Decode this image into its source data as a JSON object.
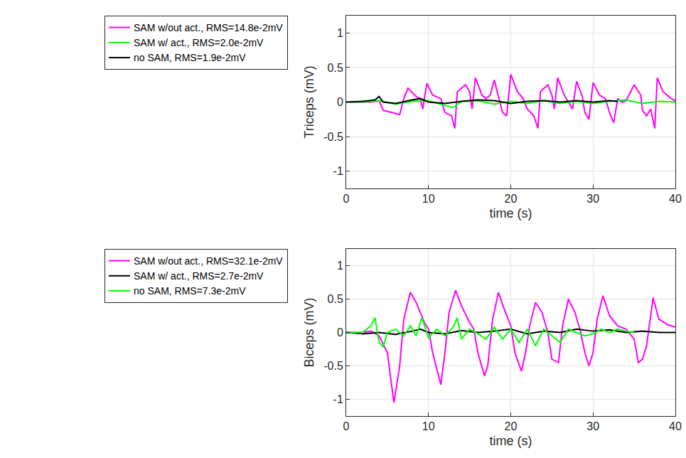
{
  "chart_data": [
    {
      "type": "line",
      "x_label": "time (s)",
      "y_label": "Triceps (mV)",
      "xlim": [
        0,
        40
      ],
      "xticks": [
        0,
        10,
        20,
        30,
        40
      ],
      "ylim": [
        -1.25,
        1.25
      ],
      "yticks": [
        -1,
        -0.5,
        0,
        0.5,
        1
      ],
      "grid": true,
      "legend": "left",
      "series": [
        {
          "name": "SAM w/out act., RMS=14.8e-2mV",
          "color": "#ff00ff",
          "x": [
            0,
            3,
            4,
            4.5,
            5.5,
            6.5,
            7,
            7.5,
            8.5,
            9,
            9.3,
            9.8,
            10.5,
            11.5,
            12,
            12.8,
            13.2,
            13.5,
            14.5,
            15,
            15.3,
            15.7,
            16.5,
            17,
            17.5,
            18,
            18.5,
            19,
            19.5,
            20,
            20.8,
            21.5,
            22,
            22.8,
            23.3,
            23.6,
            24.5,
            25,
            25.3,
            25.7,
            26.5,
            27,
            27.5,
            28,
            28.7,
            29,
            29.5,
            30,
            30.8,
            31.5,
            32,
            32.5,
            33,
            33.5,
            34,
            35,
            35.8,
            36,
            36.5,
            37,
            37.5,
            37.8,
            38.5,
            39.5,
            40
          ],
          "values": [
            0,
            0,
            0.02,
            -0.12,
            -0.15,
            -0.18,
            0.05,
            0.2,
            0.08,
            0.05,
            -0.1,
            0.27,
            0.1,
            0.05,
            -0.15,
            -0.2,
            -0.38,
            0.15,
            0.25,
            0.15,
            -0.1,
            0.35,
            0.1,
            0.05,
            0.1,
            0.32,
            0.08,
            -0.15,
            -0.2,
            0.4,
            0.15,
            0.05,
            -0.1,
            -0.2,
            -0.38,
            0.15,
            0.25,
            0.1,
            -0.1,
            0.35,
            0.1,
            0,
            -0.1,
            0.3,
            0.08,
            -0.15,
            -0.25,
            0.28,
            0.1,
            0.05,
            -0.15,
            -0.3,
            0.05,
            0,
            0.02,
            0.25,
            0.1,
            -0.12,
            -0.2,
            -0.1,
            -0.38,
            0.35,
            0.15,
            0.05,
            0.02
          ]
        },
        {
          "name": "SAM w/ act., RMS=2.0e-2mV",
          "color": "#00ff00",
          "x": [
            0,
            2,
            4,
            6,
            8,
            10,
            12,
            13,
            14,
            16,
            18,
            20,
            22,
            24,
            26,
            28,
            30,
            32,
            34,
            36,
            38,
            40
          ],
          "values": [
            0,
            0,
            0.02,
            -0.03,
            0.01,
            0.02,
            -0.05,
            -0.08,
            0.01,
            0.02,
            -0.03,
            0.01,
            -0.02,
            0.02,
            -0.02,
            0.01,
            -0.02,
            0.01,
            0.03,
            -0.02,
            0.01,
            0
          ]
        },
        {
          "name": "no SAM, RMS=1.9e-2mV",
          "color": "#000000",
          "x": [
            0,
            2,
            3.5,
            4,
            4.5,
            6,
            8,
            9,
            10,
            12,
            14,
            16,
            18,
            20,
            22,
            24,
            26,
            28,
            30,
            32,
            33
          ],
          "values": [
            0,
            0.01,
            0.03,
            0.08,
            0,
            -0.02,
            0.03,
            0.05,
            0,
            -0.02,
            0.01,
            0.03,
            0.02,
            -0.02,
            0.01,
            0.02,
            0,
            0.02,
            0,
            0.02,
            0.01
          ]
        }
      ]
    },
    {
      "type": "line",
      "x_label": "time (s)",
      "y_label": "Biceps (mV)",
      "xlim": [
        0,
        40
      ],
      "xticks": [
        0,
        10,
        20,
        30,
        40
      ],
      "ylim": [
        -1.25,
        1.25
      ],
      "yticks": [
        -1,
        -0.5,
        0,
        0.5,
        1
      ],
      "grid": true,
      "legend": "left",
      "series": [
        {
          "name": "SAM w/out act., RMS=32.1e-2mV",
          "color": "#ff00ff",
          "x": [
            0,
            2,
            3,
            4,
            5,
            5.8,
            6.5,
            7,
            7.8,
            8.5,
            9.5,
            10,
            10.5,
            11,
            11.5,
            12,
            12.5,
            13.3,
            14,
            15,
            15.5,
            16,
            16.8,
            17.2,
            17.8,
            18.5,
            19.2,
            20,
            20.5,
            21.3,
            21.8,
            22.3,
            23,
            23.8,
            24.5,
            25,
            25.8,
            26.3,
            27,
            27.8,
            28.5,
            29,
            29.5,
            30,
            30.5,
            31.2,
            32,
            33,
            34,
            35,
            35.5,
            36,
            36.5,
            37.3,
            38,
            39,
            40
          ],
          "values": [
            0,
            0,
            0.02,
            -0.05,
            -0.3,
            -1.05,
            -0.5,
            0.2,
            0.6,
            0.45,
            0.15,
            0.05,
            -0.3,
            -0.55,
            -0.78,
            -0.3,
            0.3,
            0.63,
            0.4,
            0.15,
            0.05,
            -0.3,
            -0.65,
            -0.5,
            0.2,
            0.6,
            0.35,
            0.1,
            -0.3,
            -0.58,
            -0.3,
            0.1,
            0.45,
            0.3,
            0,
            -0.4,
            -0.45,
            0.1,
            0.5,
            0.3,
            0,
            -0.3,
            -0.5,
            -0.3,
            0.2,
            0.55,
            0.25,
            0.1,
            0.05,
            -0.1,
            -0.45,
            -0.4,
            -0.2,
            0.52,
            0.2,
            0.12,
            0.08
          ]
        },
        {
          "name": "SAM w/ act., RMS=2.7e-2mV",
          "color": "#000000",
          "x": [
            0,
            2,
            4,
            6,
            8,
            9,
            10,
            12,
            14,
            16,
            18,
            20,
            22,
            24,
            26,
            28,
            30,
            32,
            34,
            36,
            38,
            40
          ],
          "values": [
            0,
            -0.02,
            0,
            -0.03,
            0.02,
            0.05,
            0,
            -0.02,
            0.03,
            0,
            0.02,
            0.05,
            -0.02,
            0.02,
            0,
            0.05,
            0.02,
            0.04,
            0,
            0.02,
            0,
            0
          ]
        },
        {
          "name": "no SAM, RMS=7.3e-2mV",
          "color": "#00ff00",
          "x": [
            0,
            2,
            3,
            3.5,
            4,
            4.5,
            5,
            6,
            7,
            7.8,
            8.5,
            9.2,
            10,
            11,
            12,
            13,
            13.5,
            14,
            15,
            16,
            17,
            18,
            19,
            20,
            21,
            22,
            23,
            24,
            25,
            26,
            27,
            28,
            29,
            30,
            31,
            32,
            33,
            34,
            35
          ],
          "values": [
            0,
            0,
            0.1,
            0.22,
            -0.15,
            -0.22,
            0,
            0.05,
            -0.05,
            0.1,
            -0.05,
            0.22,
            -0.08,
            0.05,
            -0.05,
            0.08,
            0.22,
            -0.1,
            0.05,
            -0.02,
            -0.1,
            0.08,
            -0.1,
            0.05,
            -0.15,
            0.05,
            -0.2,
            0.05,
            -0.05,
            -0.15,
            0.05,
            0,
            -0.05,
            -0.02,
            0.05,
            0,
            0.05,
            0.02,
            0
          ]
        }
      ]
    }
  ]
}
